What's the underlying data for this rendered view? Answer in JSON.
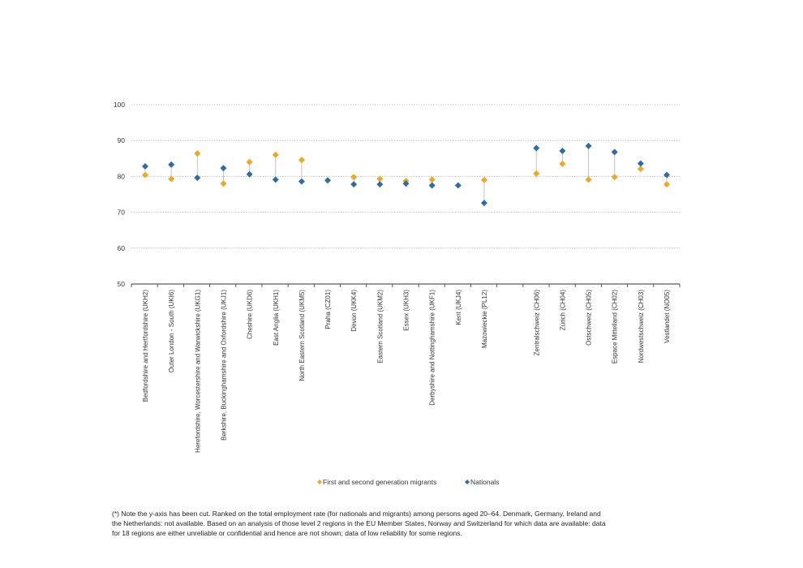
{
  "chart_data": {
    "type": "scatter",
    "title": "",
    "xlabel": "",
    "ylabel": "",
    "ylim": [
      50,
      100
    ],
    "yticks": [
      50,
      60,
      70,
      80,
      90,
      100
    ],
    "grid": true,
    "legend_position": "bottom",
    "categories": [
      "Bedfordshire and Hertfordshire (UKH2)",
      "Outer London - South (UKI6)",
      "Herefordshire, Worcestershire and Warwickshire (UKG1)",
      "Berkshire, Buckinghamshire and Oxfordshire (UKJ1)",
      "Cheshire (UKD6)",
      "East Anglia (UKH1)",
      "North Eastern Scotland (UKM5)",
      "Praha (CZ01)",
      "Devon (UKK4)",
      "Eastern Scotland (UKM2)",
      "Essex (UKH3)",
      "Derbyshire and Nottinghamshire (UKF1)",
      "Kent (UKJ4)",
      "Mazowieckie (PL12)",
      "",
      "Zentralschweiz (CH06)",
      "Zürich (CH04)",
      "Ostschweiz (CH05)",
      "Espace Mittelland (CH02)",
      "Nordwestschweiz (CH03)",
      "Vestlandet (NO05)"
    ],
    "series": [
      {
        "name": "First and second generation migrants",
        "color": "#f0a723",
        "values": [
          80.4,
          79.3,
          86.4,
          78.0,
          84.0,
          86.0,
          84.6,
          null,
          79.8,
          79.3,
          78.7,
          79.1,
          null,
          79.0,
          null,
          80.8,
          83.5,
          79.1,
          79.8,
          82.1,
          77.8
        ]
      },
      {
        "name": "Nationals",
        "color": "#2e6ca4",
        "values": [
          82.8,
          83.3,
          79.6,
          82.3,
          80.6,
          79.1,
          78.6,
          78.9,
          77.8,
          77.8,
          78.0,
          77.5,
          77.5,
          72.6,
          null,
          87.9,
          87.1,
          88.5,
          86.8,
          83.6,
          80.4
        ]
      }
    ]
  },
  "footnote": "(*) Note the y-axis has been cut. Ranked on the total employment rate (for nationals and migrants) among persons aged 20–64. Denmark, Germany, Ireland and the Netherlands: not available. Based on an analysis of those level 2 regions in the EU Member States, Norway and Switzerland for which data are available: data for 18 regions are either unreliable or confidential and hence are not shown; data of low reliability for some regions."
}
